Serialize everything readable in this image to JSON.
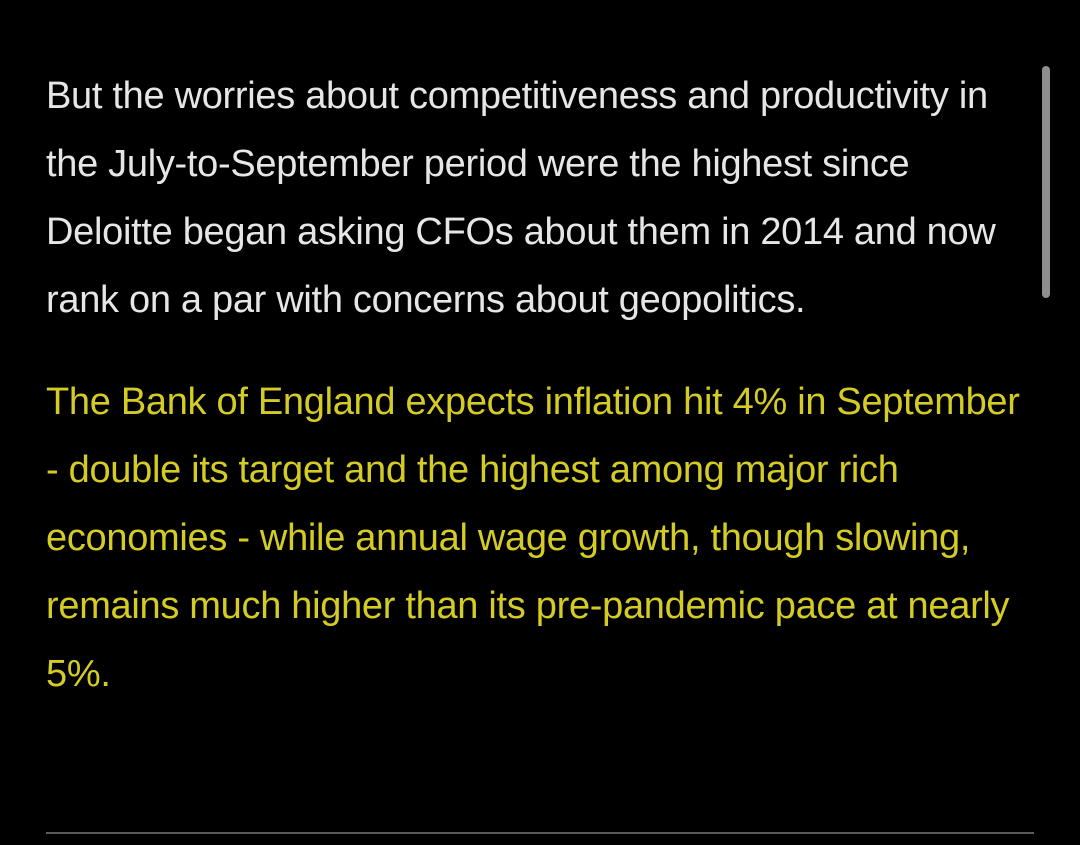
{
  "article": {
    "paragraphs": [
      {
        "text": "But the worries about competitiveness and productivity in the July-to-September period were the highest since Deloitte began asking CFOs about them in 2014 and now rank on a par with concerns about geopolitics.",
        "color": "#e6e6e6"
      },
      {
        "text": "The Bank of England expects inflation hit 4% in September - double its target and the highest among major rich economies - while annual wage growth, though slowing, remains much higher than its pre-pandemic pace at nearly 5%.",
        "color": "#d4cc24"
      }
    ]
  },
  "theme": {
    "background": "#000000",
    "scrollbar": "#8e8e8e",
    "divider": "#5a5a5a"
  }
}
